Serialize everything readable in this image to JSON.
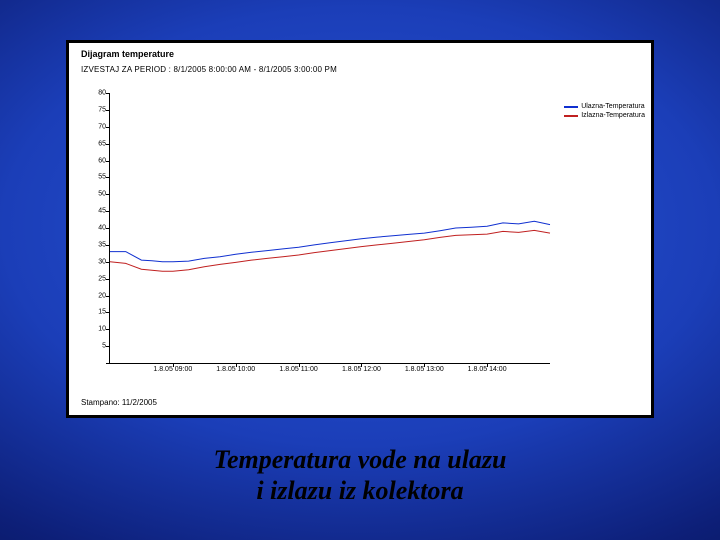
{
  "slide": {
    "background_gradient": [
      "#2a56d8",
      "#1b3eb8",
      "#0d1f78",
      "#06104c"
    ],
    "caption_line1": "Temperatura  vode  na  ulazu",
    "caption_line2": "i izlazu  iz  kolektora",
    "caption_fontsize": 26,
    "caption_font": "Georgia, serif",
    "caption_color": "#000000"
  },
  "panel": {
    "border_color": "#000000",
    "border_width": 3,
    "background_color": "#ffffff",
    "title": "Dijagram temperature",
    "title_fontsize": 9,
    "subtitle": "IZVESTAJ ZA PERIOD :  8/1/2005 8:00:00 AM  -  8/1/2005 3:00:00 PM",
    "subtitle_fontsize": 8,
    "stamp": "Stampano: 11/2/2005",
    "stamp_fontsize": 8
  },
  "chart": {
    "type": "line",
    "ylim": [
      0,
      80
    ],
    "yticks": [
      0,
      5,
      10,
      15,
      20,
      25,
      30,
      35,
      40,
      45,
      50,
      55,
      60,
      65,
      70,
      75,
      80
    ],
    "ytick_labels": [
      "",
      "5",
      "10",
      "15",
      "20",
      "25",
      "30",
      "35",
      "40",
      "45",
      "50",
      "55",
      "60",
      "65",
      "70",
      "75",
      "80"
    ],
    "xlim_minutes": [
      480,
      900
    ],
    "xticks_minutes": [
      540,
      600,
      660,
      720,
      780,
      840
    ],
    "xtick_labels": [
      "1.8.05 09:00",
      "1.8.05 10:00",
      "1.8.05 11:00",
      "1.8.05 12:00",
      "1.8.05 13:00",
      "1.8.05 14:00"
    ],
    "axis_fontsize": 7,
    "axis_color": "#000000",
    "grid_color": "#e0e0e0",
    "plot_bg": "#ffffff",
    "line_width": 1.0,
    "series": [
      {
        "name": "Ulazna-Temperatura",
        "color": "#1030d0",
        "points": [
          [
            480,
            33.0
          ],
          [
            495,
            33.0
          ],
          [
            510,
            30.5
          ],
          [
            520,
            30.3
          ],
          [
            530,
            30.0
          ],
          [
            540,
            30.0
          ],
          [
            555,
            30.2
          ],
          [
            570,
            31.0
          ],
          [
            585,
            31.5
          ],
          [
            600,
            32.2
          ],
          [
            615,
            32.8
          ],
          [
            630,
            33.3
          ],
          [
            645,
            33.8
          ],
          [
            660,
            34.3
          ],
          [
            675,
            35.0
          ],
          [
            690,
            35.6
          ],
          [
            705,
            36.2
          ],
          [
            720,
            36.8
          ],
          [
            735,
            37.3
          ],
          [
            750,
            37.7
          ],
          [
            765,
            38.1
          ],
          [
            780,
            38.5
          ],
          [
            795,
            39.2
          ],
          [
            810,
            40.0
          ],
          [
            825,
            40.2
          ],
          [
            840,
            40.5
          ],
          [
            855,
            41.5
          ],
          [
            870,
            41.2
          ],
          [
            885,
            42.0
          ],
          [
            900,
            41.0
          ]
        ]
      },
      {
        "name": "Izlazna-Temperatura",
        "color": "#c02020",
        "points": [
          [
            480,
            30.0
          ],
          [
            495,
            29.5
          ],
          [
            510,
            27.8
          ],
          [
            520,
            27.5
          ],
          [
            530,
            27.2
          ],
          [
            540,
            27.2
          ],
          [
            555,
            27.6
          ],
          [
            570,
            28.5
          ],
          [
            585,
            29.2
          ],
          [
            600,
            29.8
          ],
          [
            615,
            30.5
          ],
          [
            630,
            31.0
          ],
          [
            645,
            31.5
          ],
          [
            660,
            32.0
          ],
          [
            675,
            32.7
          ],
          [
            690,
            33.3
          ],
          [
            705,
            33.9
          ],
          [
            720,
            34.5
          ],
          [
            735,
            35.0
          ],
          [
            750,
            35.5
          ],
          [
            765,
            36.0
          ],
          [
            780,
            36.5
          ],
          [
            795,
            37.2
          ],
          [
            810,
            37.8
          ],
          [
            825,
            38.0
          ],
          [
            840,
            38.2
          ],
          [
            855,
            39.0
          ],
          [
            870,
            38.7
          ],
          [
            885,
            39.3
          ],
          [
            900,
            38.5
          ]
        ]
      }
    ],
    "legend": {
      "position": "right",
      "fontsize": 7,
      "items": [
        {
          "label": "Ulazna-Temperatura",
          "color": "#1030d0"
        },
        {
          "label": "Izlazna-Temperatura",
          "color": "#c02020"
        }
      ]
    }
  }
}
